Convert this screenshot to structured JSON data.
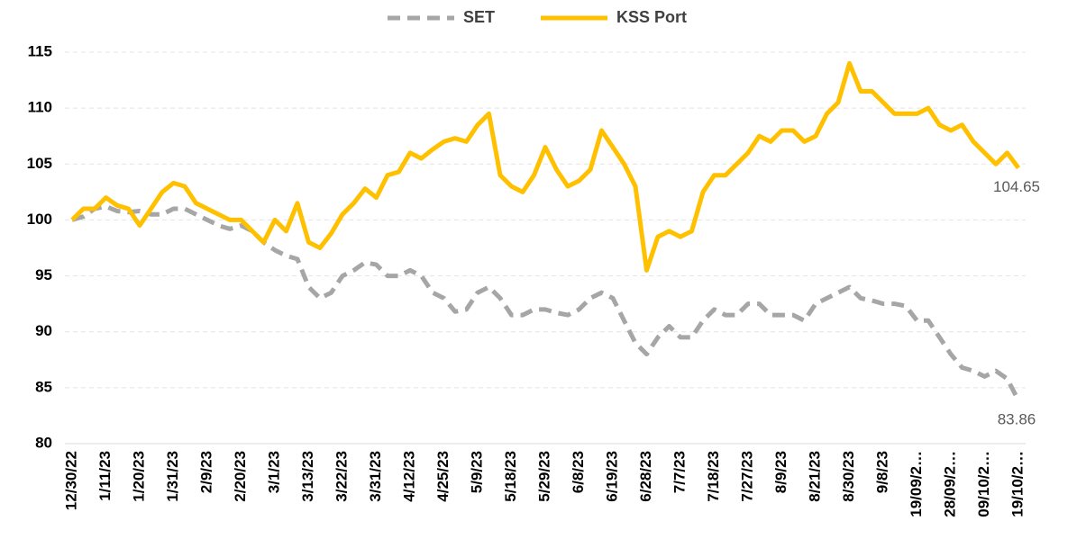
{
  "chart_data": {
    "type": "line",
    "categories": [
      "12/30/22",
      null,
      null,
      "1/11/23",
      null,
      null,
      "1/20/23",
      null,
      null,
      "1/31/23",
      null,
      null,
      "2/9/23",
      null,
      null,
      "2/20/23",
      null,
      null,
      "3/1/23",
      null,
      null,
      "3/13/23",
      null,
      null,
      "3/22/23",
      null,
      null,
      "3/31/23",
      null,
      null,
      "4/12/23",
      null,
      null,
      "4/25/23",
      null,
      null,
      "5/9/23",
      null,
      null,
      "5/18/23",
      null,
      null,
      "5/29/23",
      null,
      null,
      "6/8/23",
      null,
      null,
      "6/19/23",
      null,
      null,
      "6/28/23",
      null,
      null,
      "7/7/23",
      null,
      null,
      "7/18/23",
      null,
      null,
      "7/27/23",
      null,
      null,
      "8/9/23",
      null,
      null,
      "8/21/23",
      null,
      null,
      "8/30/23",
      null,
      null,
      "9/8/23",
      null,
      null,
      "19/09/2…",
      null,
      null,
      "28/09/2…",
      null,
      null,
      "09/10/2…",
      null,
      null,
      "19/10/2…"
    ],
    "series": [
      {
        "name": "SET",
        "color": "#a6a6a6",
        "dashed": true,
        "values": [
          100,
          100.3,
          101,
          101.2,
          100.8,
          100.7,
          100.8,
          100.5,
          100.5,
          101,
          101,
          100.5,
          100,
          99.5,
          99.2,
          99.5,
          99,
          98,
          97.3,
          96.8,
          96.5,
          94,
          93,
          93.5,
          95,
          95.5,
          96.2,
          96,
          95,
          95,
          95.5,
          95,
          93.5,
          93,
          91.8,
          92,
          93.5,
          94,
          93,
          91.5,
          91.5,
          92,
          92,
          91.7,
          91.5,
          92,
          93,
          93.5,
          93,
          91,
          89,
          88,
          89.5,
          90.5,
          89.5,
          89.5,
          91,
          92,
          91.5,
          91.5,
          92.5,
          92.5,
          91.5,
          91.5,
          91.5,
          91,
          92.5,
          93,
          93.5,
          94,
          93,
          92.8,
          92.5,
          92.5,
          92.3,
          91,
          91,
          89.5,
          88,
          86.8,
          86.5,
          86,
          86.5,
          85.8,
          83.86
        ]
      },
      {
        "name": "KSS Port",
        "color": "#ffc000",
        "dashed": false,
        "values": [
          100,
          101,
          101,
          102,
          101.3,
          101,
          99.5,
          101,
          102.5,
          103.3,
          103,
          101.5,
          101,
          100.5,
          100,
          100,
          99,
          98,
          100,
          99,
          101.5,
          98,
          97.5,
          98.8,
          100.5,
          101.5,
          102.8,
          102,
          104,
          104.3,
          106,
          105.5,
          106.3,
          107,
          107.3,
          107,
          108.5,
          109.5,
          104,
          103,
          102.5,
          104,
          106.5,
          104.5,
          103,
          103.5,
          104.5,
          108,
          106.5,
          105,
          103,
          95.5,
          98.5,
          99,
          98.5,
          99,
          102.5,
          104,
          104,
          105,
          106,
          107.5,
          107,
          108,
          108,
          107,
          107.5,
          109.5,
          110.5,
          114,
          111.5,
          111.5,
          110.5,
          109.5,
          109.5,
          109.5,
          110,
          108.5,
          108,
          108.5,
          107,
          106,
          105,
          106,
          104.65
        ]
      }
    ],
    "ylim": [
      80,
      115
    ],
    "yticks": [
      80,
      85,
      90,
      95,
      100,
      105,
      110,
      115
    ],
    "grid": true,
    "legend": "top"
  }
}
